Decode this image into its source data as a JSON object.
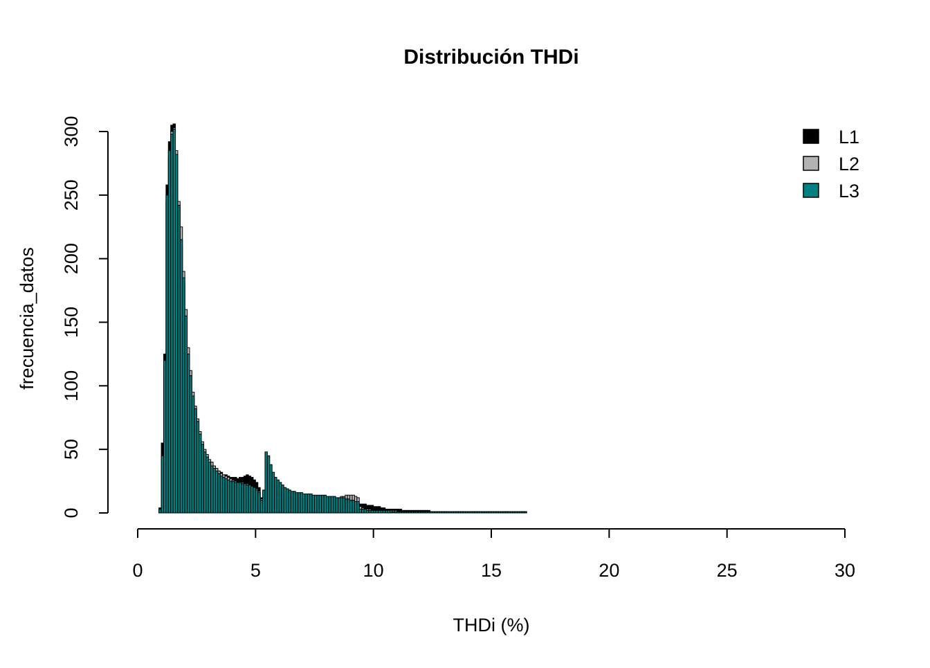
{
  "chart_data": {
    "type": "bar",
    "title": "Distribución THDi",
    "xlabel": "THDi (%)",
    "ylabel": "frecuencia_datos",
    "xlim": [
      0,
      30
    ],
    "ylim": [
      0,
      300
    ],
    "x_ticks": [
      "0",
      "5",
      "10",
      "15",
      "20",
      "25",
      "30"
    ],
    "y_ticks": [
      "0",
      "50",
      "100",
      "150",
      "200",
      "250",
      "300"
    ],
    "bin_width": 0.1,
    "x_start": 0.9,
    "legend_position": "top-right",
    "grid": false,
    "series": [
      {
        "name": "L1",
        "color": "#000000",
        "values": [
          4,
          55,
          125,
          258,
          292,
          305,
          306,
          280,
          240,
          210,
          180,
          150,
          120,
          105,
          90,
          80,
          70,
          60,
          52,
          48,
          45,
          40,
          38,
          36,
          35,
          33,
          32,
          30,
          30,
          29,
          28,
          28,
          28,
          27,
          28,
          28,
          29,
          30,
          29,
          28,
          26,
          24,
          20,
          12,
          9,
          9,
          10,
          12,
          13,
          15,
          16,
          15,
          14,
          14,
          13,
          12,
          12,
          12,
          11,
          11,
          11,
          11,
          11,
          10,
          10,
          10,
          10,
          10,
          9,
          9,
          9,
          9,
          9,
          9,
          9,
          8,
          8,
          8,
          8,
          8,
          8,
          8,
          7,
          7,
          7,
          7,
          7,
          7,
          6,
          6,
          6,
          5,
          5,
          5,
          4,
          4,
          3,
          3,
          3,
          3,
          3,
          3,
          3,
          2,
          2,
          2,
          2,
          2,
          2,
          2,
          2,
          2,
          2,
          2,
          2,
          1,
          1,
          1,
          1,
          1,
          1,
          1,
          1,
          1,
          1,
          1,
          1,
          1,
          1,
          1,
          1,
          1,
          1,
          1,
          1,
          1,
          1,
          1,
          1,
          1,
          1,
          1,
          1,
          1,
          1,
          1,
          1,
          1,
          1,
          1,
          1,
          1,
          1,
          1,
          1,
          1
        ]
      },
      {
        "name": "L2",
        "color": "#b3b3b3",
        "values": [
          2,
          40,
          110,
          245,
          280,
          300,
          303,
          285,
          245,
          225,
          190,
          160,
          130,
          112,
          95,
          84,
          74,
          64,
          56,
          50,
          46,
          42,
          40,
          37,
          35,
          33,
          31,
          30,
          29,
          28,
          27,
          26,
          25,
          24,
          24,
          24,
          23,
          23,
          22,
          21,
          20,
          19,
          17,
          11,
          10,
          10,
          11,
          13,
          15,
          16,
          16,
          15,
          14,
          14,
          13,
          13,
          12,
          12,
          12,
          12,
          12,
          12,
          11,
          11,
          11,
          11,
          11,
          11,
          11,
          11,
          11,
          11,
          11,
          11,
          11,
          12,
          12,
          13,
          13,
          14,
          14,
          14,
          14,
          13,
          12,
          5,
          4,
          3,
          3,
          3,
          2,
          2,
          2,
          2,
          2,
          2,
          2,
          2,
          2,
          2,
          2,
          1,
          1,
          1,
          1,
          1,
          1,
          1,
          1,
          1,
          1,
          1,
          1,
          1,
          1,
          1,
          1,
          1,
          1,
          1,
          1,
          1,
          1,
          1,
          1,
          1,
          1,
          1,
          1,
          1,
          1,
          1,
          1,
          1,
          1,
          1,
          1,
          1,
          1,
          1,
          1,
          1,
          1,
          1,
          1,
          1,
          1,
          1,
          1,
          1,
          1,
          1,
          1,
          1,
          1,
          1
        ]
      },
      {
        "name": "L3",
        "color": "#008080",
        "values": [
          3,
          45,
          120,
          250,
          285,
          298,
          302,
          282,
          242,
          215,
          185,
          155,
          125,
          108,
          92,
          82,
          72,
          62,
          54,
          48,
          44,
          40,
          37,
          35,
          33,
          31,
          29,
          28,
          27,
          26,
          25,
          25,
          24,
          24,
          24,
          23,
          23,
          22,
          22,
          21,
          20,
          18,
          16,
          10,
          18,
          48,
          45,
          38,
          32,
          28,
          26,
          24,
          22,
          20,
          19,
          18,
          17,
          17,
          16,
          16,
          16,
          15,
          15,
          15,
          15,
          14,
          14,
          14,
          14,
          14,
          14,
          13,
          13,
          13,
          13,
          12,
          12,
          12,
          12,
          11,
          11,
          10,
          10,
          9,
          9,
          3,
          3,
          3,
          2,
          2,
          2,
          2,
          2,
          2,
          2,
          2,
          2,
          2,
          1,
          1,
          1,
          1,
          1,
          1,
          1,
          1,
          1,
          1,
          1,
          1,
          1,
          1,
          1,
          1,
          1,
          1,
          1,
          1,
          1,
          1,
          1,
          1,
          1,
          1,
          1,
          1,
          1,
          1,
          1,
          1,
          1,
          1,
          1,
          1,
          1,
          1,
          1,
          1,
          1,
          1,
          1,
          1,
          1,
          1,
          1,
          1,
          1,
          1,
          1,
          1,
          1,
          1,
          1,
          1,
          1,
          1
        ]
      }
    ]
  }
}
